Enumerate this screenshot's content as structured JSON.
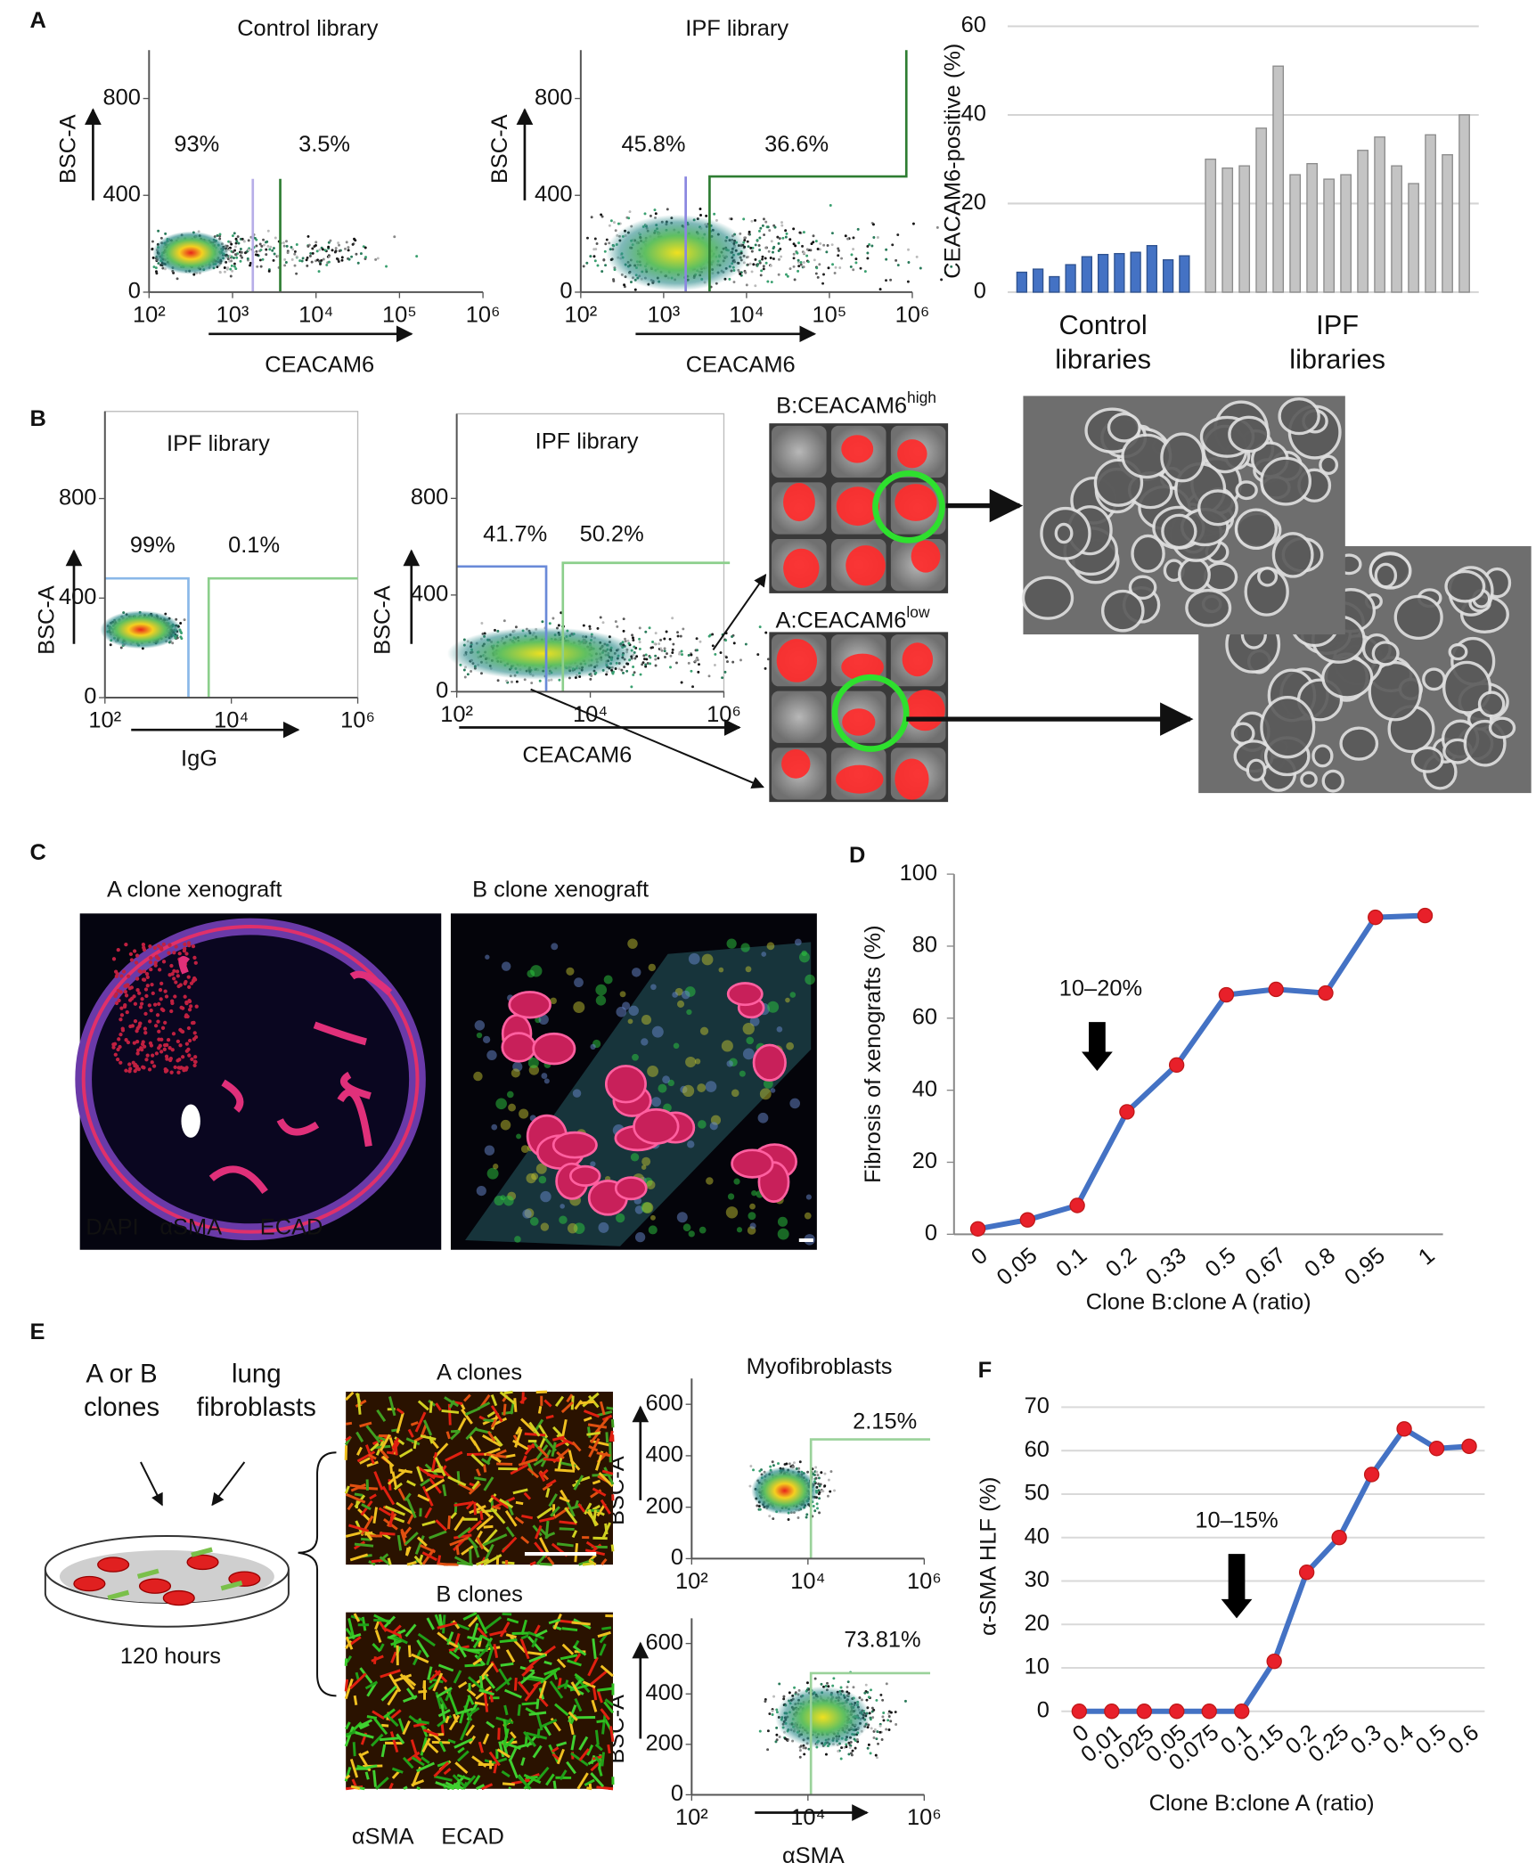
{
  "panel_labels": [
    "A",
    "B",
    "C",
    "D",
    "E",
    "F"
  ],
  "flow_plots": [
    {
      "title": "Control library",
      "y_label": "BSC-A",
      "x_label": "CEACAM6",
      "ylim": [
        0,
        1000
      ],
      "yticks": [
        0,
        400,
        800
      ],
      "xlim": [
        100,
        1000000
      ],
      "xticks": [
        {
          "value": 100,
          "label": "10²"
        },
        {
          "value": 1000,
          "label": "10³"
        },
        {
          "value": 10000,
          "label": "10⁴"
        },
        {
          "value": 100000,
          "label": "10⁵"
        },
        {
          "value": 1000000,
          "label": "10⁶"
        }
      ],
      "gate_labels": [
        "93%",
        "3.5%"
      ]
    },
    {
      "title": "IPF library",
      "y_label": "BSC-A",
      "x_label": "CEACAM6",
      "ylim": [
        0,
        1000
      ],
      "yticks": [
        0,
        400,
        800
      ],
      "xlim": [
        100,
        1000000
      ],
      "xticks": [
        {
          "value": 100,
          "label": "10²"
        },
        {
          "value": 1000,
          "label": "10³"
        },
        {
          "value": 10000,
          "label": "10⁴"
        },
        {
          "value": 100000,
          "label": "10⁵"
        },
        {
          "value": 1000000,
          "label": "10⁶"
        }
      ],
      "gate_labels": [
        "45.8%",
        "36.6%"
      ]
    },
    {
      "title": "IPF library",
      "y_label": "BSC-A",
      "x_label": "IgG",
      "ylim": [
        0,
        1150
      ],
      "yticks": [
        0,
        400,
        800
      ],
      "xlim": [
        100,
        1000000
      ],
      "xticks": [
        {
          "value": 100,
          "label": "10²"
        },
        {
          "value": 10000,
          "label": "10⁴"
        },
        {
          "value": 1000000,
          "label": "10⁶"
        }
      ],
      "gate_labels": [
        "99%",
        "0.1%"
      ]
    },
    {
      "title": "IPF library",
      "y_label": "BSC-A",
      "x_label": "CEACAM6",
      "ylim": [
        0,
        1150
      ],
      "yticks": [
        0,
        400,
        800
      ],
      "xlim": [
        100,
        1000000
      ],
      "xticks": [
        {
          "value": 100,
          "label": "10²"
        },
        {
          "value": 10000,
          "label": "10⁴"
        },
        {
          "value": 1000000,
          "label": "10⁶"
        }
      ],
      "gate_labels": [
        "41.7%",
        "50.2%"
      ]
    },
    {
      "title": "Myofibroblasts",
      "y_label": "BSC-A",
      "ylim": [
        0,
        700
      ],
      "yticks": [
        0,
        200,
        400,
        600
      ],
      "xlim": [
        100,
        1000000
      ],
      "xticks": [
        {
          "value": 100,
          "label": "10²"
        },
        {
          "value": 10000,
          "label": "10⁴"
        },
        {
          "value": 1000000,
          "label": "10⁶"
        }
      ],
      "gate_labels": [
        "2.15%"
      ]
    },
    {
      "y_label": "BSC-A",
      "x_label": "αSMA",
      "ylim": [
        0,
        700
      ],
      "yticks": [
        0,
        200,
        400,
        600
      ],
      "xlim": [
        100,
        1000000
      ],
      "xticks": [
        {
          "value": 100,
          "label": "10²"
        },
        {
          "value": 10000,
          "label": "10⁴"
        },
        {
          "value": 1000000,
          "label": "10⁶"
        }
      ],
      "gate_labels": [
        "73.81%"
      ]
    }
  ],
  "wells": [
    {
      "label": "B:CEACAM6",
      "superscript": "high"
    },
    {
      "label": "A:CEACAM6",
      "superscript": "low"
    }
  ],
  "xenografts": {
    "titles": [
      "A clone xenograft",
      "B clone xenograft"
    ],
    "stain_legend": [
      {
        "text": "DAPI",
        "color": "#2a8cff"
      },
      {
        "text": "αSMA",
        "color": "#2ecc40"
      },
      {
        "text": "ECAD",
        "color": "#e3202c"
      }
    ]
  },
  "coculture": {
    "inputs": [
      "A or B clones",
      "lung fibroblasts"
    ],
    "duration": "120 hours",
    "image_titles": [
      "A clones",
      "B clones"
    ],
    "stain_legend": [
      {
        "text": "αSMA",
        "color": "#22b14c"
      },
      {
        "text": "ECAD",
        "color": "#e3202c"
      }
    ]
  },
  "chart_data": [
    {
      "type": "bar",
      "y_label": "CEACAM6-positive (%)",
      "ylim": [
        0,
        60
      ],
      "yticks": [
        0,
        20,
        40,
        60
      ],
      "grid": true,
      "series": [
        {
          "name": "Control libraries",
          "color": "#4472c4",
          "values": [
            4.5,
            5.2,
            3.5,
            6.2,
            8,
            8.5,
            8.7,
            9,
            10.5,
            7.3,
            8.2
          ]
        },
        {
          "name": "IPF libraries",
          "color": "#c4c4c4",
          "values": [
            30,
            28,
            28.5,
            37,
            51,
            26.5,
            29,
            25.5,
            26.5,
            32,
            35,
            28.5,
            24.5,
            35.5,
            31,
            40
          ]
        }
      ]
    },
    {
      "type": "line",
      "y_label": "Fibrosis of xenografts (%)",
      "x_label": "Clone B:clone A (ratio)",
      "annotation": "10–20%",
      "categories": [
        "0",
        "0.05",
        "0.1",
        "0.2",
        "0.33",
        "0.5",
        "0.67",
        "0.8",
        "0.95",
        "1"
      ],
      "values": [
        1.5,
        4,
        8,
        34,
        47,
        66.5,
        68,
        67,
        88,
        88.5
      ],
      "color": "#4472c4",
      "marker_color": "#e8202a",
      "ylim": [
        0,
        100
      ],
      "yticks": [
        0,
        20,
        40,
        60,
        80,
        100
      ],
      "grid": false
    },
    {
      "type": "line",
      "y_label": "α-SMA HLF (%)",
      "x_label": "Clone B:clone A (ratio)",
      "annotation": "10–15%",
      "categories": [
        "0",
        "0.01",
        "0.025",
        "0.05",
        "0.075",
        "0.1",
        "0.15",
        "0.2",
        "0.25",
        "0.3",
        "0.4",
        "0.5",
        "0.6"
      ],
      "values": [
        0,
        0,
        0,
        0,
        0,
        0,
        11.5,
        32,
        40,
        54.5,
        65,
        60.5,
        61
      ],
      "color": "#4472c4",
      "marker_color": "#e8202a",
      "ylim": [
        0,
        70
      ],
      "yticks": [
        0,
        10,
        20,
        30,
        40,
        50,
        60,
        70
      ],
      "grid": true
    }
  ]
}
